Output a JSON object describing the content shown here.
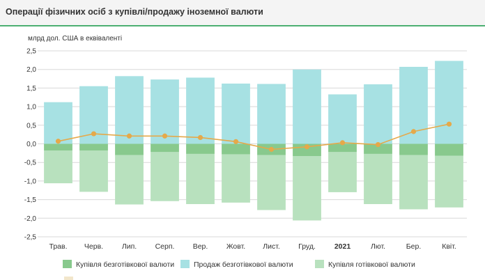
{
  "title": "Операції фізичних осіб з купівлі/продажу іноземної валюти",
  "colors": {
    "noncash_buy": "#88c98d",
    "noncash_sell": "#a7e1e3",
    "cash_buy": "#b8e1be",
    "net_line": "#e5a94a",
    "grid": "#d8d8d8",
    "accent": "#4caf71"
  },
  "chart_data": {
    "type": "bar",
    "title": "Операції фізичних осіб з купівлі/продажу іноземної валюти",
    "ylabel": "млрд дол. США в еквіваленті",
    "xlabel": "",
    "ylim": [
      -2.5,
      2.5
    ],
    "y_ticks": [
      "2,5",
      "2,0",
      "1,5",
      "1,0",
      "0,5",
      "0,0",
      "-0,5",
      "-1,0",
      "-1,5",
      "-2,0",
      "-2,5"
    ],
    "categories": [
      "Трав.",
      "Черв.",
      "Лип.",
      "Серп.",
      "Вер.",
      "Жовт.",
      "Лист.",
      "Груд.",
      "2021",
      "Лют.",
      "Бер.",
      "Квіт."
    ],
    "bold_categories": [
      "2021"
    ],
    "grid": true,
    "legend_position": "bottom",
    "series": [
      {
        "name": "Купівля безготівкової валюти",
        "type": "bar",
        "values": [
          -0.18,
          -0.18,
          -0.3,
          -0.22,
          -0.27,
          -0.28,
          -0.3,
          -0.33,
          -0.22,
          -0.27,
          -0.3,
          -0.32
        ]
      },
      {
        "name": "Продаж безготівкової валюти",
        "type": "bar",
        "values": [
          1.12,
          1.55,
          1.82,
          1.73,
          1.78,
          1.62,
          1.61,
          2.0,
          1.33,
          1.6,
          2.07,
          2.23
        ]
      },
      {
        "name": "Купівля готівкової валюти",
        "type": "bar",
        "values": [
          -1.06,
          -1.29,
          -1.63,
          -1.54,
          -1.62,
          -1.58,
          -1.78,
          -2.06,
          -1.3,
          -1.62,
          -1.76,
          -1.71
        ]
      },
      {
        "name": "",
        "type": "line",
        "values": [
          0.07,
          0.27,
          0.21,
          0.21,
          0.17,
          0.06,
          -0.15,
          -0.08,
          0.03,
          -0.02,
          0.33,
          0.53
        ]
      }
    ]
  }
}
